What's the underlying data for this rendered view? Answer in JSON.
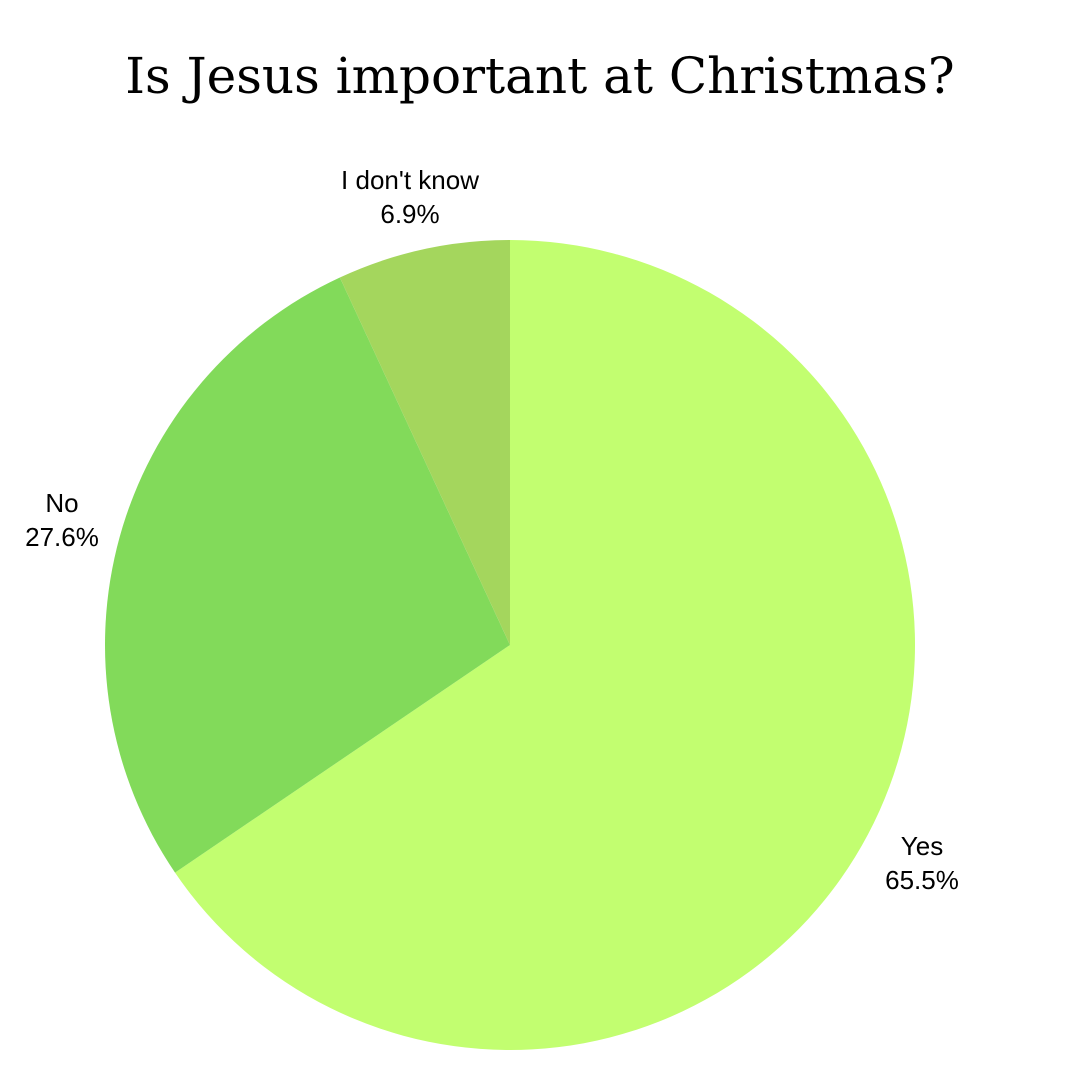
{
  "chart_data": {
    "type": "pie",
    "title": "Is Jesus important at Christmas?",
    "start_angle_deg": 0,
    "direction": "clockwise",
    "slices": [
      {
        "label": "Yes",
        "value": 65.5,
        "value_label": "65.5%",
        "color": "#c2fe70"
      },
      {
        "label": "No",
        "value": 27.6,
        "value_label": "27.6%",
        "color": "#82da5a"
      },
      {
        "label": "I don't know",
        "value": 6.9,
        "value_label": "6.9%",
        "color": "#a4d65d"
      }
    ]
  }
}
